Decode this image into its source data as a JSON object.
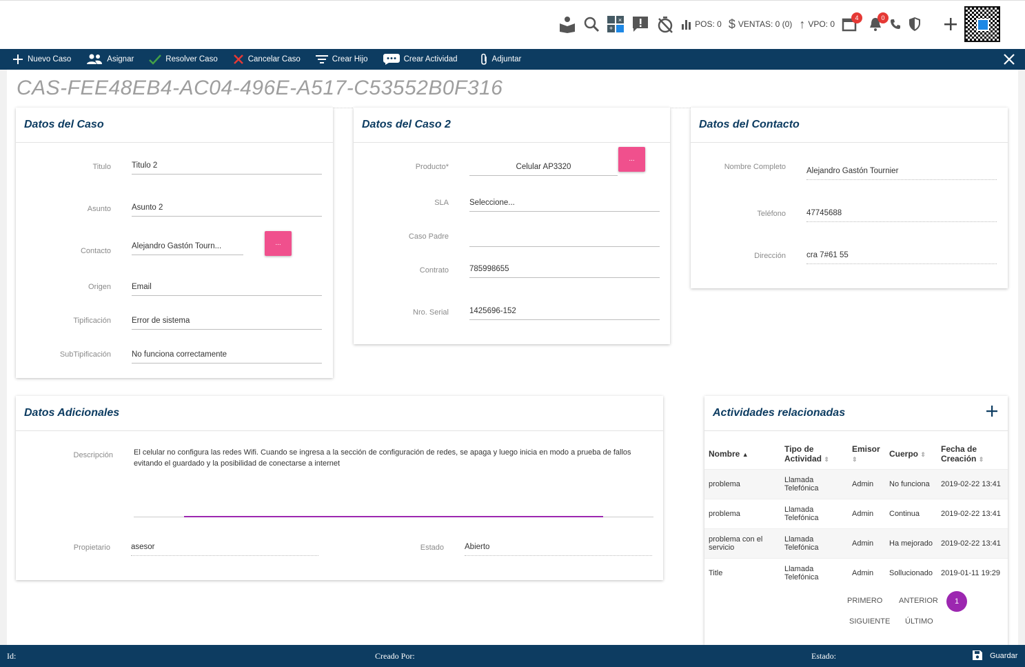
{
  "topbar": {
    "pos_label": "POS: 0",
    "ventas_label": "VENTAS: 0 (0)",
    "vpo_label": "VPO: 0",
    "calendar_badge": "4",
    "notifications_badge": "0"
  },
  "actions": {
    "nuevo_caso": "Nuevo Caso",
    "asignar": "Asignar",
    "resolver_caso": "Resolver Caso",
    "cancelar_caso": "Cancelar Caso",
    "crear_hijo": "Crear Hijo",
    "crear_actividad": "Crear Actividad",
    "adjuntar": "Adjuntar"
  },
  "case_id": "CAS-FEE48EB4-AC04-496E-A517-C53552B0F316",
  "datos_caso": {
    "title": "Datos del Caso",
    "fields": [
      {
        "label": "Titulo",
        "value": "Titulo 2"
      },
      {
        "label": "Asunto",
        "value": "Asunto 2"
      },
      {
        "label": "Contacto",
        "value": "Alejandro Gastón Tourn..."
      },
      {
        "label": "Origen",
        "value": "Email"
      },
      {
        "label": "Tipificación",
        "value": "Error de sistema"
      },
      {
        "label": "SubTipificación",
        "value": "No funciona correctamente"
      }
    ],
    "lookup_label": "..."
  },
  "datos_caso2": {
    "title": "Datos del Caso 2",
    "fields": [
      {
        "label": "Producto*",
        "value": "Celular AP3320"
      },
      {
        "label": "SLA",
        "value": "Seleccione..."
      },
      {
        "label": "Caso Padre",
        "value": ""
      },
      {
        "label": "Contrato",
        "value": "785998655"
      },
      {
        "label": "Nro. Serial",
        "value": "1425696-152"
      }
    ],
    "lookup_label": "..."
  },
  "datos_contacto": {
    "title": "Datos del Contacto",
    "fields": [
      {
        "label": "Nombre Completo",
        "value": "Alejandro Gastón Tournier"
      },
      {
        "label": "Teléfono",
        "value": "47745688"
      },
      {
        "label": "Dirección",
        "value": "cra 7#61 55"
      }
    ]
  },
  "datos_adicionales": {
    "title": "Datos Adicionales",
    "descripcion_label": "Descripción",
    "descripcion": "El celular no configura las redes Wifi. Cuando se ingresa a la sección de configuración de redes, se apaga y luego inicia en modo a prueba de fallos evitando el guardado y la posibilidad de conectarse a internet",
    "propietario_label": "Propietario",
    "propietario": "asesor",
    "estado_label": "Estado",
    "estado": "Abierto"
  },
  "actividades": {
    "title": "Actividades relacionadas",
    "headers": [
      "Nombre",
      "Tipo de Actividad",
      "Emisor",
      "Cuerpo",
      "Fecha de Creación"
    ],
    "rows": [
      {
        "nombre": "problema",
        "tipo": "Llamada Telefónica",
        "emisor": "Admin",
        "cuerpo": "No funciona",
        "fecha": "2019-02-22 13:41"
      },
      {
        "nombre": "problema",
        "tipo": "Llamada Telefónica",
        "emisor": "Admin",
        "cuerpo": "Continua",
        "fecha": "2019-02-22 13:41"
      },
      {
        "nombre": "problema con el servicio",
        "tipo": "Llamada Telefónica",
        "emisor": "Admin",
        "cuerpo": "Ha mejorado",
        "fecha": "2019-02-22 13:41"
      },
      {
        "nombre": "Title",
        "tipo": "Llamada Telefónica",
        "emisor": "Admin",
        "cuerpo": "Sollucionado",
        "fecha": "2019-01-11 19:29"
      }
    ],
    "pager": {
      "primero": "PRIMERO",
      "anterior": "ANTERIOR",
      "page": "1",
      "siguiente": "SIGUIENTE",
      "ultimo": "ÚLTIMO"
    }
  },
  "footer": {
    "id_label": "Id:",
    "creado_label": "Creado Por:",
    "estado_label": "Estado:",
    "guardar": "Guardar"
  },
  "colors": {
    "primary": "#0d3c61",
    "accent": "#f0508d",
    "purple": "#9c27b0"
  }
}
